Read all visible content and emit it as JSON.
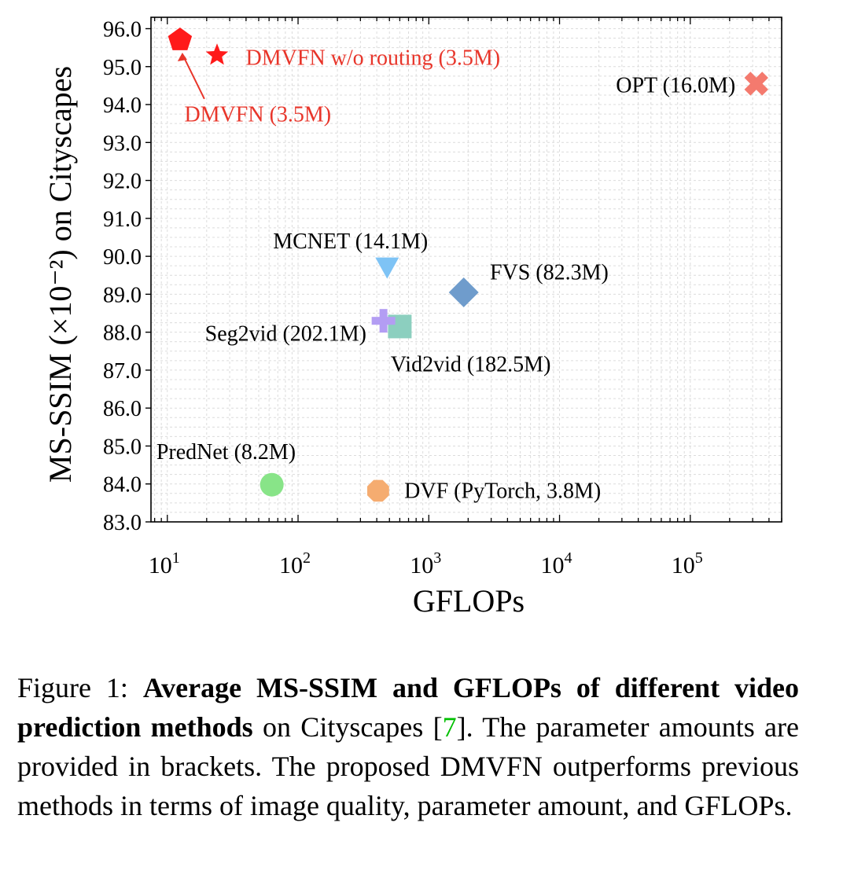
{
  "chart_data": {
    "type": "scatter",
    "title": "",
    "xlabel": "GFLOPs",
    "ylabel": "MS-SSIM (×10⁻²) on Cityscapes",
    "xscale": "log",
    "xlim": [
      7.5,
      500000
    ],
    "ylim": [
      83.0,
      96.3
    ],
    "grid": true,
    "xticks": [
      {
        "value": 10,
        "base": "10",
        "exp": "1"
      },
      {
        "value": 100,
        "base": "10",
        "exp": "2"
      },
      {
        "value": 1000,
        "base": "10",
        "exp": "3"
      },
      {
        "value": 10000,
        "base": "10",
        "exp": "4"
      },
      {
        "value": 100000,
        "base": "10",
        "exp": "5"
      }
    ],
    "yticks": [
      "83.0",
      "84.0",
      "85.0",
      "86.0",
      "87.0",
      "88.0",
      "89.0",
      "90.0",
      "91.0",
      "92.0",
      "93.0",
      "94.0",
      "95.0",
      "96.0"
    ],
    "points": [
      {
        "id": "dmvfn",
        "label": "DMVFN (3.5M)",
        "x": 12.5,
        "y": 95.7,
        "marker": "pentagon",
        "color": "#ff1a1a",
        "label_color": "#e8352a",
        "label_anchor": "start",
        "label_dx": -8,
        "label_dy": 4.5,
        "arrow": true
      },
      {
        "id": "dmvfn-no-routing",
        "label": "DMVFN w/o routing (3.5M)",
        "x": 24,
        "y": 95.3,
        "marker": "star",
        "color": "#ff1a1a",
        "label_color": "#e8352a",
        "label_anchor": "start",
        "label_dx": 0.22,
        "label_dy": -0.05
      },
      {
        "id": "opt",
        "label": "OPT (16.0M)",
        "x": 320000,
        "y": 94.55,
        "marker": "x",
        "color": "#f47a6e",
        "label_color": "#000000",
        "label_anchor": "end",
        "label_dx": -0.16,
        "label_dy": -0.02
      },
      {
        "id": "mcnet",
        "label": "MCNET (14.1M)",
        "x": 480,
        "y": 89.7,
        "marker": "triangle-down",
        "color": "#7ec3f5",
        "label_color": "#000000",
        "label_anchor": "middle",
        "label_dx": -0.28,
        "label_dy": 0.72
      },
      {
        "id": "fvs",
        "label": "FVS (82.3M)",
        "x": 1850,
        "y": 89.05,
        "marker": "diamond",
        "color": "#6f9ccc",
        "label_color": "#000000",
        "label_anchor": "start",
        "label_dx": 0.2,
        "label_dy": 0.55
      },
      {
        "id": "seg2vid",
        "label": "Seg2vid (202.1M)",
        "x": 450,
        "y": 88.3,
        "marker": "plus",
        "color": "#b39df3",
        "label_color": "#000000",
        "label_anchor": "end",
        "label_dx": -0.13,
        "label_dy": -0.32
      },
      {
        "id": "vid2vid",
        "label": "Vid2vid (182.5M)",
        "x": 600,
        "y": 88.15,
        "marker": "square",
        "color": "#8ccfbf",
        "label_color": "#000000",
        "label_anchor": "start",
        "label_dx": -0.07,
        "label_dy": -0.98
      },
      {
        "id": "prednet",
        "label": "PredNet (8.2M)",
        "x": 63,
        "y": 83.98,
        "marker": "circle",
        "color": "#88e488",
        "label_color": "#000000",
        "label_anchor": "middle",
        "label_dx": -0.35,
        "label_dy": 0.88
      },
      {
        "id": "dvf",
        "label": "DVF (PyTorch, 3.8M)",
        "x": 410,
        "y": 83.82,
        "marker": "octagon",
        "color": "#f5ac70",
        "label_color": "#000000",
        "label_anchor": "start",
        "label_dx": 0.2,
        "label_dy": 0.02
      }
    ]
  },
  "caption": {
    "prefix": "Figure 1: ",
    "bold": "Average MS-SSIM and GFLOPs of different video prediction methods",
    "middle": " on Cityscapes [",
    "cite": "7",
    "rest": "].  The parameter amounts are provided in brackets.  The proposed DMVFN outperforms previous methods in terms of image quality, parameter amount, and GFLOPs."
  }
}
